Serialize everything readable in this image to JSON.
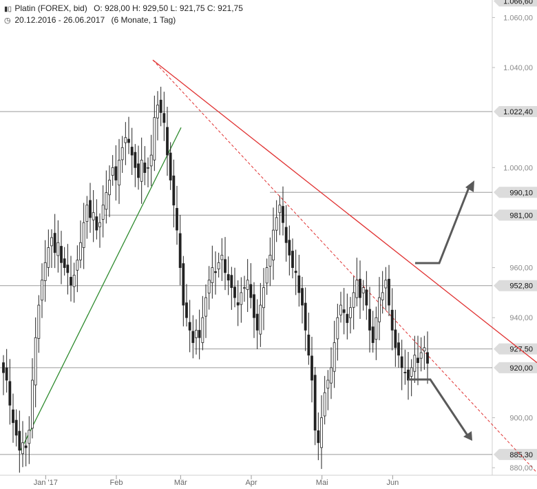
{
  "header": {
    "instrument": "Platin (FOREX, bid)",
    "ohlc": "O: 928,00  H: 929,50  L: 921,75  C: 921,75",
    "range": "20.12.2016 - 26.06.2017",
    "period": "(6 Monate, 1 Tag)"
  },
  "chart_data": {
    "type": "candlestick",
    "ylim": [
      877,
      1067
    ],
    "y_ticks": [
      "1.060,00",
      "1.040,00",
      "1.000,00",
      "960,00",
      "940,00",
      "900,00",
      "880,00"
    ],
    "y_tick_values": [
      1060,
      1040,
      1000,
      960,
      940,
      900,
      880
    ],
    "x_tick_labels": [
      "Jan '17",
      "Feb",
      "Mär",
      "Apr",
      "Mai",
      "Jun"
    ],
    "price_levels": [
      {
        "label": "1.066,60",
        "value": 1066.6
      },
      {
        "label": "1.022,40",
        "value": 1022.4
      },
      {
        "label": "990,10",
        "value": 990.1
      },
      {
        "label": "981,00",
        "value": 981.0
      },
      {
        "label": "952,80",
        "value": 952.8
      },
      {
        "label": "927,50",
        "value": 927.5
      },
      {
        "label": "920,00",
        "value": 920.0
      },
      {
        "label": "885,30",
        "value": 885.3
      }
    ],
    "closes": [
      918,
      915,
      905,
      898,
      893,
      887,
      890,
      888,
      895,
      915,
      932,
      945,
      955,
      962,
      968,
      972,
      966,
      970,
      962,
      960,
      958,
      953,
      957,
      963,
      970,
      978,
      985,
      980,
      982,
      975,
      978,
      985,
      990,
      995,
      1000,
      995,
      1003,
      1008,
      1012,
      1010,
      1005,
      1000,
      996,
      1003,
      998,
      1000,
      1005,
      1020,
      1025,
      1022,
      1018,
      1005,
      995,
      985,
      975,
      960,
      945,
      940,
      935,
      930,
      935,
      932,
      940,
      948,
      955,
      960,
      958,
      962,
      965,
      958,
      955,
      952,
      948,
      945,
      950,
      952,
      955,
      948,
      940,
      935,
      945,
      952,
      960,
      965,
      975,
      980,
      985,
      978,
      970,
      965,
      960,
      958,
      950,
      945,
      935,
      925,
      915,
      895,
      890,
      900,
      910,
      915,
      920,
      930,
      940,
      945,
      942,
      938,
      944,
      950,
      955,
      948,
      952,
      945,
      935,
      930,
      940,
      948,
      950,
      955,
      945,
      935,
      928,
      925,
      920,
      918,
      915,
      920,
      925,
      922,
      926,
      928,
      921.75
    ]
  },
  "arrows": {
    "up": "up-arrow",
    "down": "down-arrow"
  },
  "colors": {
    "downtrend": "#e03030",
    "uptrend": "#2e8b2e",
    "candle_outline": "#222222",
    "arrow": "#5a5a5a",
    "level_tag": "#dcdcdc"
  }
}
